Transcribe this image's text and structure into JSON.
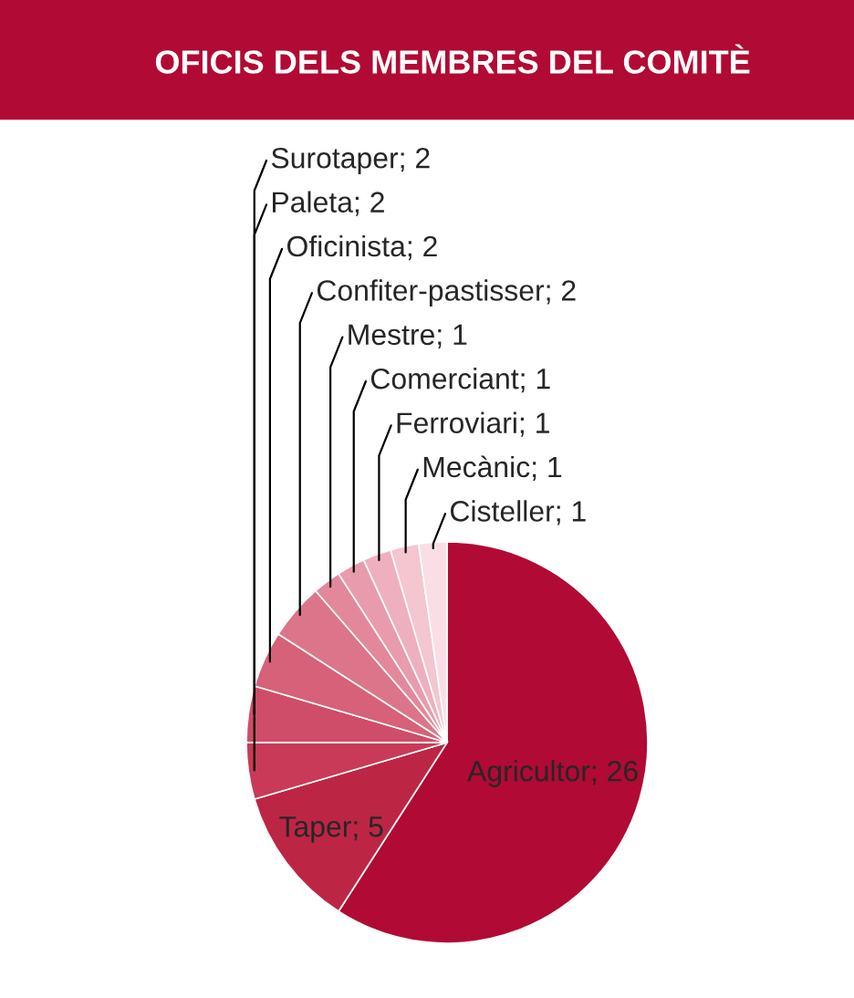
{
  "chart_data": {
    "type": "pie",
    "title": "OFICIS DELS MEMBRES DEL COMITÈ",
    "categories": [
      "Agricultor; 26",
      "Taper; 5",
      "Surotaper; 2",
      "Paleta; 2",
      "Oficinista; 2",
      "Confiter-pastisser; 2",
      "Mestre; 1",
      "Comerciant; 1",
      "Ferroviari; 1",
      "Mecànic; 1",
      "Cisteller; 1"
    ],
    "values": [
      26,
      5,
      2,
      2,
      2,
      2,
      1,
      1,
      1,
      1,
      1
    ],
    "colors": [
      "#b10a34",
      "#bd2545",
      "#c83a57",
      "#cf4d68",
      "#d66179",
      "#dc7589",
      "#e2889a",
      "#e89cab",
      "#eeb0bd",
      "#f3c6d0",
      "#f9dfe5"
    ],
    "legend": false
  }
}
